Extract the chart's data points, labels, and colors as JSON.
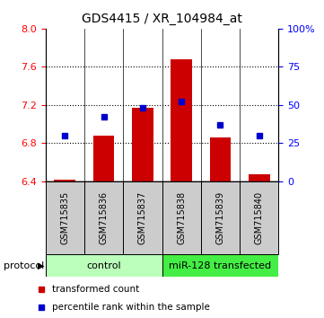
{
  "title": "GDS4415 / XR_104984_at",
  "samples": [
    "GSM715835",
    "GSM715836",
    "GSM715837",
    "GSM715838",
    "GSM715839",
    "GSM715840"
  ],
  "transformed_count": [
    6.42,
    6.88,
    7.17,
    7.68,
    6.86,
    6.47
  ],
  "percentile_rank": [
    30,
    42,
    48,
    52,
    37,
    30
  ],
  "ylim_left": [
    6.4,
    8.0
  ],
  "ylim_right": [
    0,
    100
  ],
  "yticks_left": [
    6.4,
    6.8,
    7.2,
    7.6,
    8.0
  ],
  "yticks_right": [
    0,
    25,
    50,
    75,
    100
  ],
  "bar_color": "#cc0000",
  "dot_color": "#0000cc",
  "bar_base": 6.4,
  "bar_width": 0.55,
  "protocol_labels": [
    "control",
    "miR-128 transfected"
  ],
  "control_color": "#bbffbb",
  "transfected_color": "#44ee44",
  "sample_box_color": "#cccccc",
  "legend_red_label": "transformed count",
  "legend_blue_label": "percentile rank within the sample",
  "background_color": "#ffffff"
}
